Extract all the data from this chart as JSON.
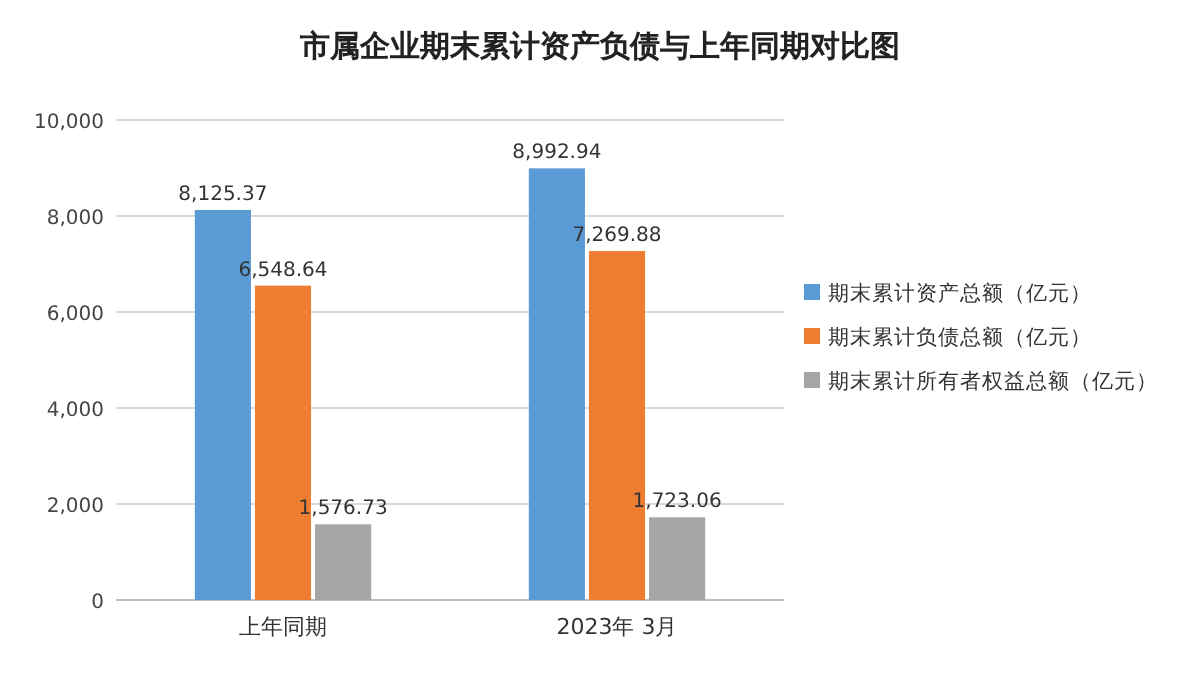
{
  "chart_data": {
    "type": "bar",
    "title": "市属企业期末累计资产负债与上年同期对比图",
    "categories": [
      "上年同期",
      "2023年 3月"
    ],
    "series": [
      {
        "name": "期末累计资产总额（亿元）",
        "color": "#5b9bd5",
        "values": [
          8125.37,
          8992.94
        ],
        "value_labels": [
          "8,125.37",
          "8,992.94"
        ]
      },
      {
        "name": "期末累计负债总额（亿元）",
        "color": "#ed7d31",
        "values": [
          6548.64,
          7269.88
        ],
        "value_labels": [
          "6,548.64",
          "7,269.88"
        ]
      },
      {
        "name": "期末累计所有者权益总额（亿元）",
        "color": "#a5a5a5",
        "values": [
          1576.73,
          1723.06
        ],
        "value_labels": [
          "1,576.73",
          "1,723.06"
        ]
      }
    ],
    "ylim": [
      0,
      10000
    ],
    "yticks": [
      0,
      {
        "value": 2000,
        "label": "2,000"
      },
      {
        "value": 4000,
        "label": "4,000"
      },
      {
        "value": 6000,
        "label": "6,000"
      },
      {
        "value": 8000,
        "label": "8,000"
      },
      {
        "value": 10000,
        "label": "10,000"
      }
    ],
    "grid": "y",
    "legend": "right"
  }
}
